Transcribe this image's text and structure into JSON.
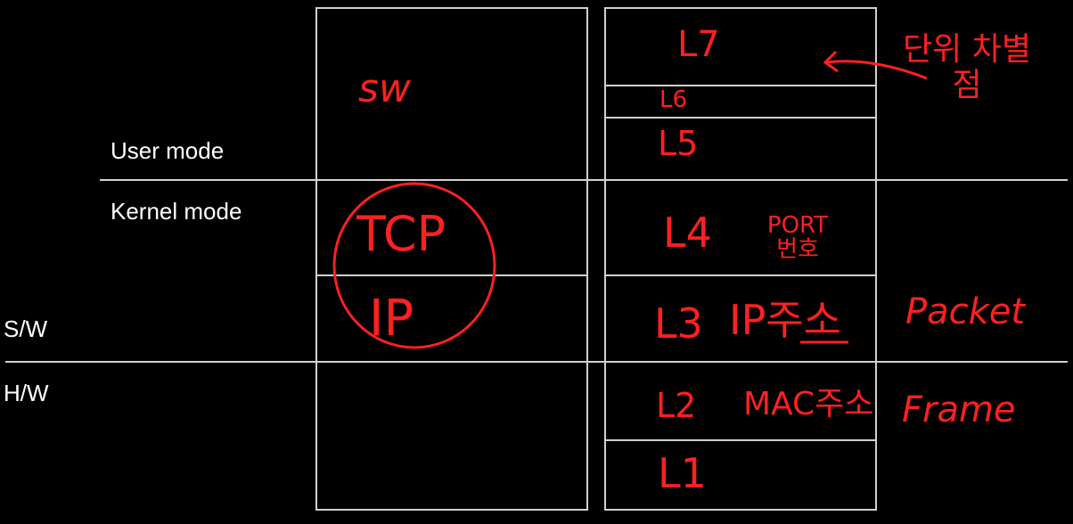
{
  "labels": {
    "user_mode": "User mode",
    "kernel_mode": "Kernel mode",
    "sw": "S/W",
    "hw": "H/W"
  },
  "left_stack": {
    "sw_note": "sw",
    "tcp": "TCP",
    "ip": "IP"
  },
  "layers": {
    "l7": "L7",
    "l6": "L6",
    "l5": "L5",
    "l4": "L4",
    "l4_note": "PORT 번호",
    "l3": "L3",
    "l3_note": "IP주소",
    "l2": "L2",
    "l2_note": "MAC주소",
    "l1": "L1"
  },
  "side_notes": {
    "unit_diff": "단위 차별점",
    "packet": "Packet",
    "frame": "Frame"
  },
  "colors": {
    "background": "#000000",
    "lines": "#d0d0d0",
    "text": "#ffffff",
    "ink": "#ff2020"
  }
}
